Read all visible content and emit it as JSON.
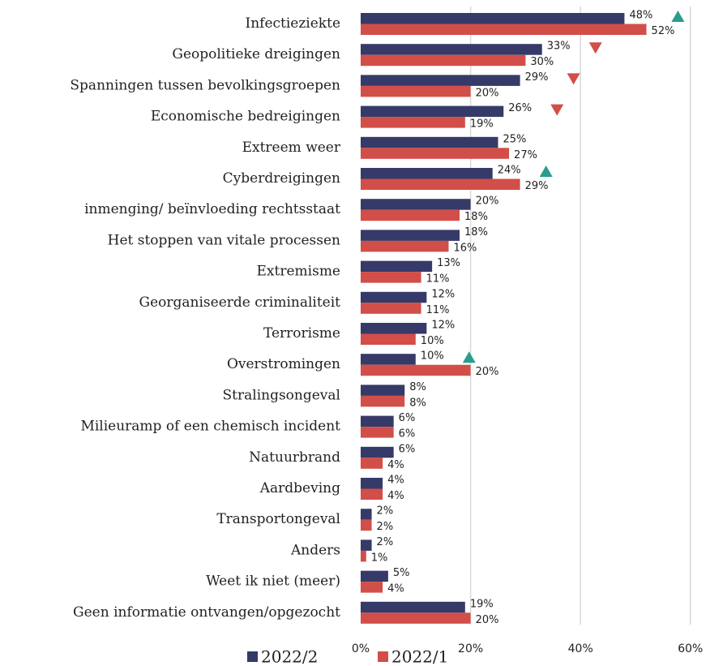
{
  "chart_data": {
    "type": "bar",
    "orientation": "horizontal",
    "categories": [
      "Infectieziekte",
      "Geopolitieke dreigingen",
      "Spanningen tussen bevolkingsgroepen",
      "Economische bedreigingen",
      "Extreem weer",
      "Cyberdreigingen",
      "inmenging/ beïnvloeding rechtsstaat",
      "Het stoppen van vitale processen",
      "Extremisme",
      "Georganiseerde criminaliteit",
      "Terrorisme",
      "Overstromingen",
      "Stralingsongeval",
      "Milieuramp of een chemisch incident",
      "Natuurbrand",
      "Aardbeving",
      "Transportongeval",
      "Anders",
      "Weet ik niet (meer)",
      "Geen informatie ontvangen/opgezocht"
    ],
    "series": [
      {
        "name": "2022/2",
        "color": "#353a68",
        "values": [
          48,
          33,
          29,
          26,
          25,
          24,
          20,
          18,
          13,
          12,
          12,
          10,
          8,
          6,
          6,
          4,
          2,
          2,
          5,
          19
        ],
        "value_labels": [
          "48%",
          "33%",
          "29%",
          "26%",
          "25%",
          "24%",
          "20%",
          "18%",
          "13%",
          "12%",
          "12%",
          "10%",
          "8%",
          "6%",
          "6%",
          "4%",
          "2%",
          "2%",
          "5%",
          "19%"
        ]
      },
      {
        "name": "2022/1",
        "color": "#d24e48",
        "values": [
          52,
          30,
          20,
          19,
          27,
          29,
          18,
          16,
          11,
          11,
          10,
          20,
          8,
          6,
          4,
          4,
          2,
          1,
          4,
          20
        ],
        "value_labels": [
          "52%",
          "30%",
          "20%",
          "19%",
          "27%",
          "29%",
          "18%",
          "16%",
          "11%",
          "11%",
          "10%",
          "20%",
          "8%",
          "6%",
          "4%",
          "4%",
          "2%",
          "1%",
          "4%",
          "20%"
        ]
      }
    ],
    "significance": [
      "up",
      "down",
      "down",
      "down",
      null,
      "up",
      null,
      null,
      null,
      null,
      null,
      "up",
      null,
      null,
      null,
      null,
      null,
      null,
      null,
      null
    ],
    "significance_colors": {
      "up": "#2a9d8f",
      "down": "#d24e48"
    },
    "xlim": [
      0,
      63
    ],
    "xticks": [
      {
        "value": 0,
        "label": "0%"
      },
      {
        "value": 20,
        "label": "20%"
      },
      {
        "value": 40,
        "label": "40%"
      },
      {
        "value": 60,
        "label": "60%"
      }
    ],
    "grid": true,
    "legend": "bottom"
  }
}
